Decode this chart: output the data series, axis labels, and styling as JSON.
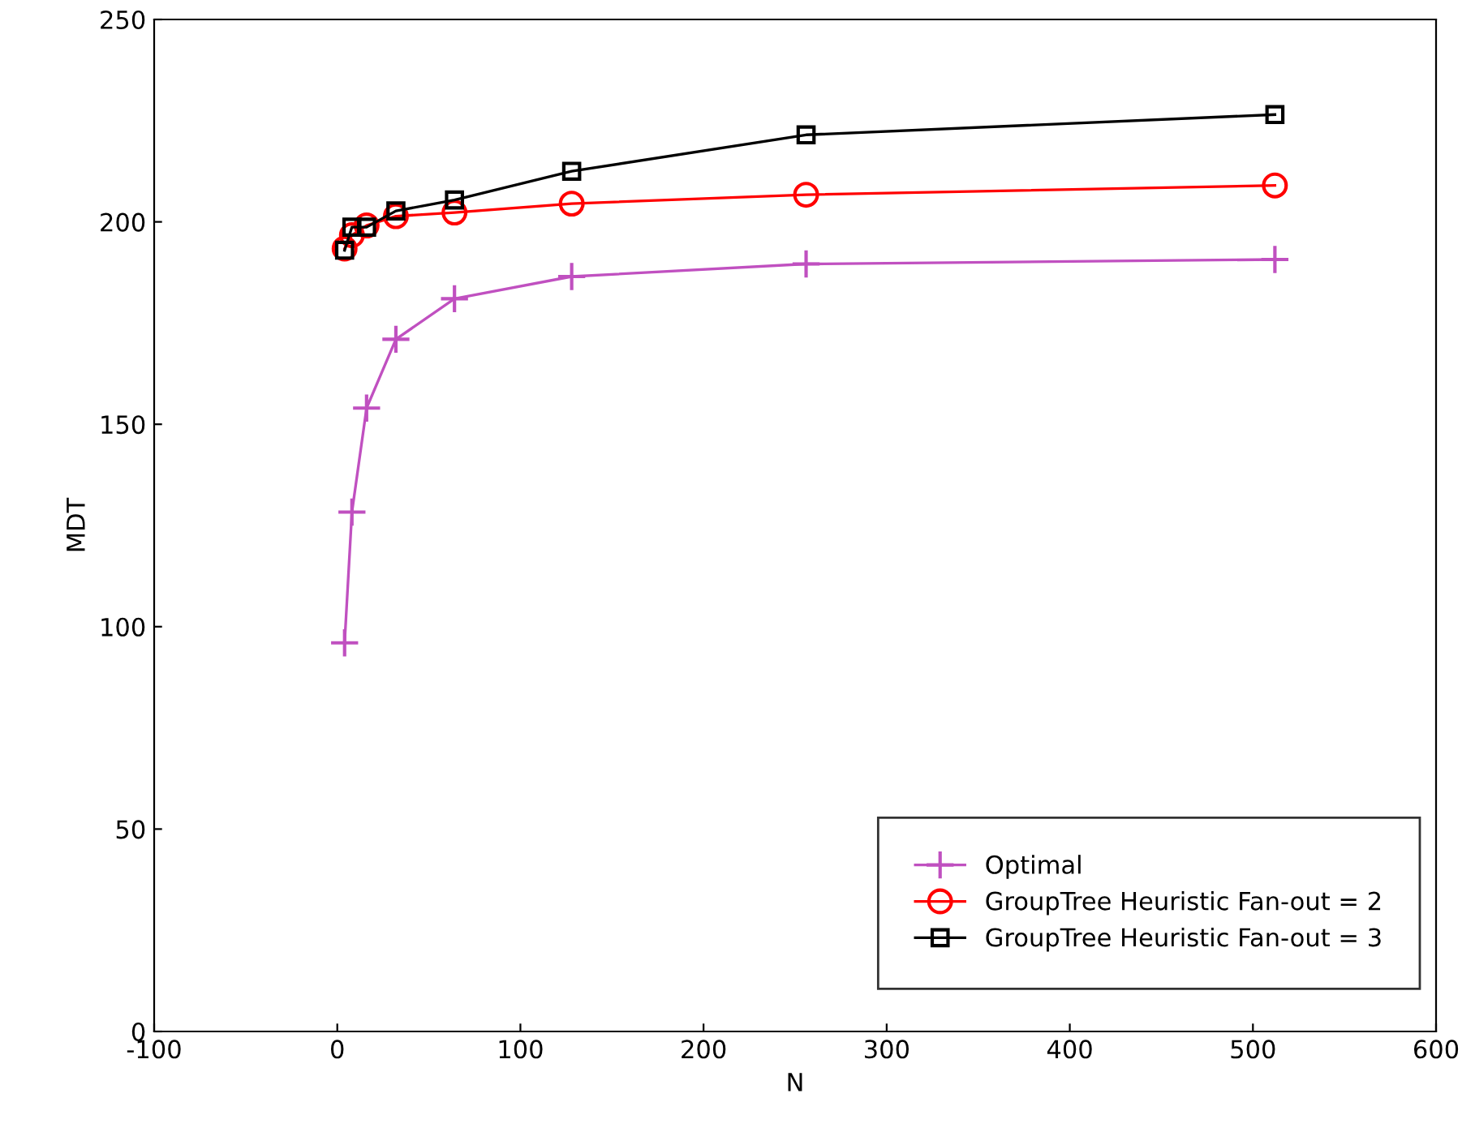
{
  "chart_data": {
    "type": "line",
    "xlabel": "N",
    "ylabel": "MDT",
    "x": [
      4,
      8,
      16,
      32,
      64,
      128,
      256,
      512
    ],
    "series": [
      {
        "name": "Optimal",
        "color": "#c050c0",
        "marker": "cross",
        "values": [
          96,
          128.3,
          154,
          171,
          181,
          186.5,
          189.6,
          190.7
        ]
      },
      {
        "name": "GroupTree Heuristic Fan-out = 2",
        "color": "#ff0000",
        "marker": "circle",
        "values": [
          193.4,
          196.7,
          199.1,
          201.4,
          202.3,
          204.5,
          206.7,
          209
        ]
      },
      {
        "name": "GroupTree Heuristic Fan-out = 3",
        "color": "#000000",
        "marker": "square",
        "values": [
          193,
          198.7,
          198.7,
          202.7,
          205.4,
          212.5,
          221.5,
          226.5
        ]
      }
    ],
    "xlim": [
      -100,
      600
    ],
    "xticks": [
      -100,
      0,
      100,
      200,
      300,
      400,
      500,
      600
    ],
    "ylim": [
      0,
      250
    ],
    "yticks": [
      0,
      50,
      100,
      150,
      200,
      250
    ],
    "grid": false,
    "legend": "bottom right",
    "line_style": "solid"
  }
}
